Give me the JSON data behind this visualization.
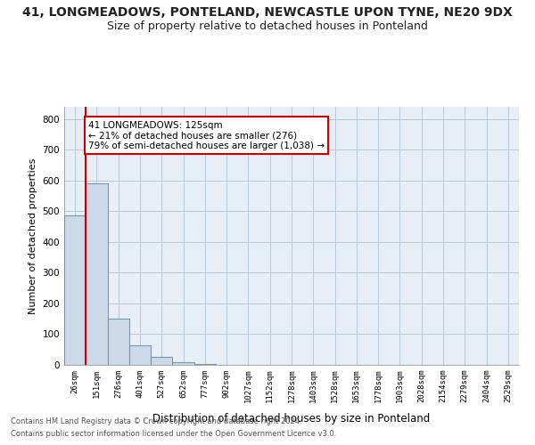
{
  "title": "41, LONGMEADOWS, PONTELAND, NEWCASTLE UPON TYNE, NE20 9DX",
  "subtitle": "Size of property relative to detached houses in Ponteland",
  "xlabel": "Distribution of detached houses by size in Ponteland",
  "ylabel": "Number of detached properties",
  "bar_values": [
    487,
    590,
    150,
    63,
    25,
    8,
    2,
    0,
    0,
    0,
    0,
    0,
    0,
    0,
    0,
    0,
    0,
    0,
    0,
    0,
    0
  ],
  "bar_color": "#ccd9e8",
  "bar_edge_color": "#7099bb",
  "x_labels": [
    "26sqm",
    "151sqm",
    "276sqm",
    "401sqm",
    "527sqm",
    "652sqm",
    "777sqm",
    "902sqm",
    "1027sqm",
    "1152sqm",
    "1278sqm",
    "1403sqm",
    "1528sqm",
    "1653sqm",
    "1778sqm",
    "1903sqm",
    "2028sqm",
    "2154sqm",
    "2279sqm",
    "2404sqm",
    "2529sqm"
  ],
  "ylim": [
    0,
    840
  ],
  "yticks": [
    0,
    100,
    200,
    300,
    400,
    500,
    600,
    700,
    800
  ],
  "property_line_color": "#cc0000",
  "annotation_text": "41 LONGMEADOWS: 125sqm\n← 21% of detached houses are smaller (276)\n79% of semi-detached houses are larger (1,038) →",
  "annotation_box_color": "#ffffff",
  "annotation_box_edge": "#cc0000",
  "footer_line1": "Contains HM Land Registry data © Crown copyright and database right 2024.",
  "footer_line2": "Contains public sector information licensed under the Open Government Licence v3.0.",
  "bg_color": "#ffffff",
  "plot_bg_color": "#e8eef5",
  "grid_color": "#b8c8d8",
  "title_fontsize": 10,
  "subtitle_fontsize": 9
}
